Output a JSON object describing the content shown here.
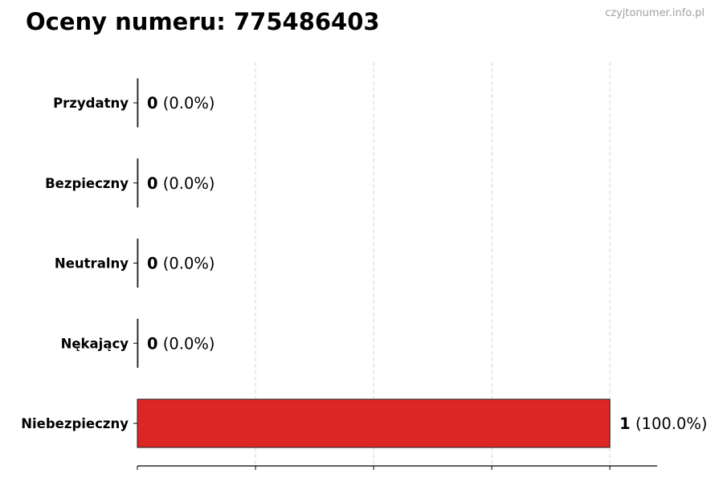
{
  "watermark": "czyjtonumer.info.pl",
  "chart_data": {
    "type": "bar",
    "orientation": "horizontal",
    "title": "Oceny numeru: 775486403",
    "xlabel": "",
    "ylabel": "",
    "categories": [
      "Przydatny",
      "Bezpieczny",
      "Neutralny",
      "Nękający",
      "Niebezpieczny"
    ],
    "values": [
      0,
      0,
      0,
      0,
      1
    ],
    "data_labels": [
      {
        "count": "0",
        "percent": "(0.0%)"
      },
      {
        "count": "0",
        "percent": "(0.0%)"
      },
      {
        "count": "0",
        "percent": "(0.0%)"
      },
      {
        "count": "0",
        "percent": "(0.0%)"
      },
      {
        "count": "1",
        "percent": "(100.0%)"
      }
    ],
    "xlim": [
      0,
      1.1
    ],
    "xticks": [
      0,
      0.25,
      0.5,
      0.75,
      1.0
    ],
    "grid": "vertical dashed",
    "bar_color": "#dc2626",
    "bar_edge_color": "#1a1a1a",
    "grid_color": "#cccccc"
  }
}
